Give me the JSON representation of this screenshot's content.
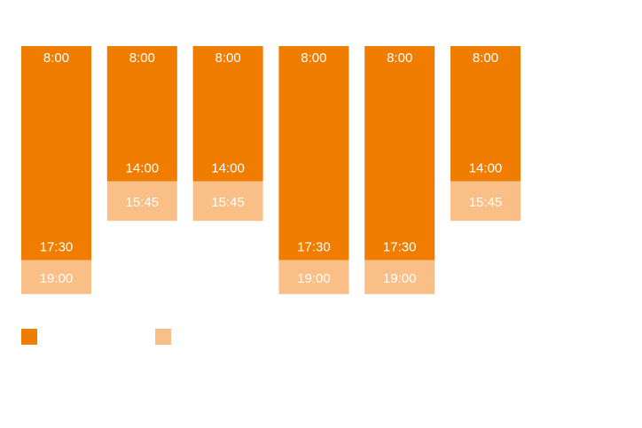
{
  "chart_data": {
    "type": "bar",
    "title": "",
    "xlabel": "",
    "ylabel": "",
    "ylim": [
      8,
      19
    ],
    "grid": false,
    "legend_position": "bottom-left",
    "colors": {
      "main": "#F07D00",
      "extended": "#F9BF86"
    },
    "columns": [
      {
        "start": "8:00",
        "main_end": "17:30",
        "extended_end": "19:00"
      },
      {
        "start": "8:00",
        "main_end": "14:00",
        "extended_end": "15:45"
      },
      {
        "start": "8:00",
        "main_end": "14:00",
        "extended_end": "15:45"
      },
      {
        "start": "8:00",
        "main_end": "17:30",
        "extended_end": "19:00"
      },
      {
        "start": "8:00",
        "main_end": "17:30",
        "extended_end": "19:00"
      },
      {
        "start": "8:00",
        "main_end": "14:00",
        "extended_end": "15:45"
      }
    ],
    "series": [
      {
        "key": "main",
        "values_hours": [
          [
            8,
            17.5
          ],
          [
            8,
            14
          ],
          [
            8,
            14
          ],
          [
            8,
            17.5
          ],
          [
            8,
            17.5
          ],
          [
            8,
            14
          ]
        ]
      },
      {
        "key": "extended",
        "values_hours": [
          [
            17.5,
            19
          ],
          [
            14,
            15.75
          ],
          [
            14,
            15.75
          ],
          [
            17.5,
            19
          ],
          [
            17.5,
            19
          ],
          [
            14,
            15.75
          ]
        ]
      }
    ]
  }
}
